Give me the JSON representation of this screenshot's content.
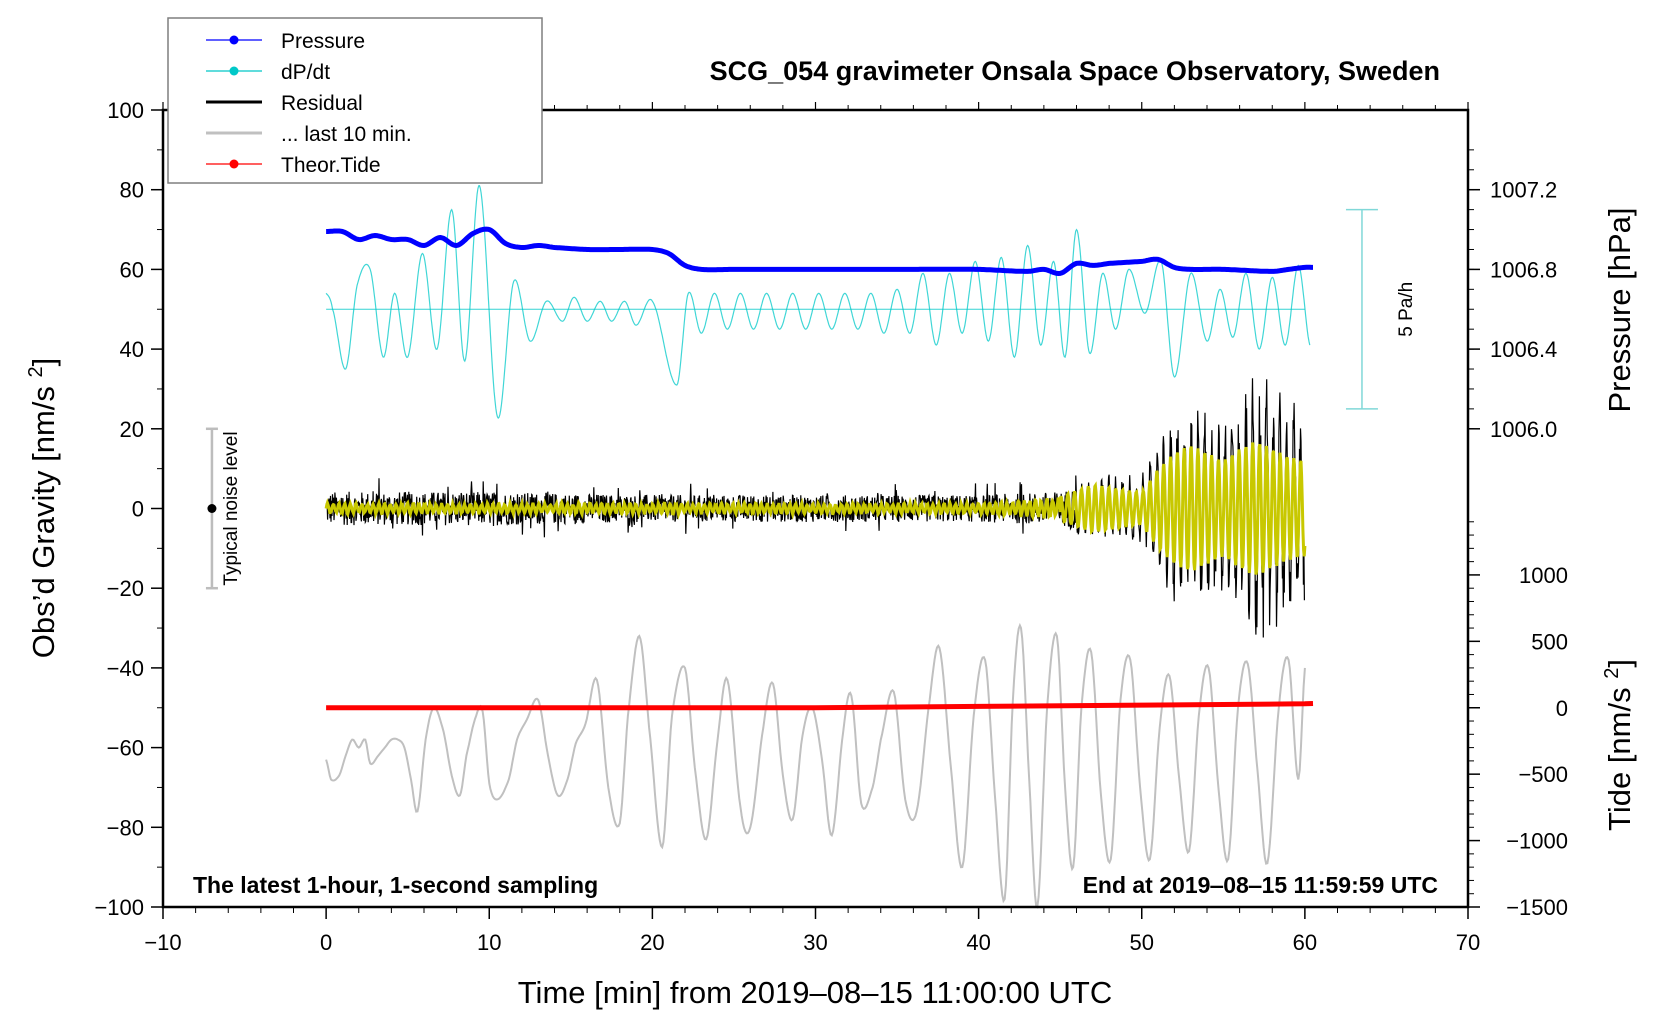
{
  "chart_data": {
    "type": "line",
    "title": "SCG_054 gravimeter Onsala Space Observatory, Sweden",
    "xlabel": "Time [min] from 2019‒08‒15 11:00:00 UTC",
    "ylabel_left": "Obs’d Gravity [nm/s²]",
    "ylabel_right_upper": "Pressure [hPa]",
    "ylabel_right_lower": "Tide [nm/s²]",
    "xlim": [
      -10,
      70
    ],
    "ylim": [
      -100,
      100
    ],
    "grid": false,
    "legend_position": "top-left",
    "x_ticks": [
      "−10",
      "0",
      "10",
      "20",
      "30",
      "40",
      "50",
      "60",
      "70"
    ],
    "x_tick_values": [
      -10,
      0,
      10,
      20,
      30,
      40,
      50,
      60,
      70
    ],
    "y_ticks": [
      "100",
      "80",
      "60",
      "40",
      "20",
      "0",
      "−20",
      "−40",
      "−60",
      "−80",
      "−100"
    ],
    "y_tick_values": [
      100,
      80,
      60,
      40,
      20,
      0,
      -20,
      -40,
      -60,
      -80,
      -100
    ],
    "pressure_axis": {
      "ticks": [
        "1007.2",
        "1006.8",
        "1006.4",
        "1006.0"
      ],
      "tick_values": [
        1007.2,
        1006.8,
        1006.4,
        1006.0
      ],
      "mapping": "gravity = 20 + (hPa - 1006.0) * 50"
    },
    "tide_axis": {
      "ticks": [
        "1000",
        "500",
        "0",
        "−500",
        "−1000",
        "−1500"
      ],
      "tick_values": [
        1000,
        500,
        0,
        -500,
        -1000,
        -1500
      ],
      "mapping": "gravity = -50 + tide / 30"
    },
    "legend": [
      {
        "label": "Pressure",
        "color": "#0000ff",
        "marker": "dot"
      },
      {
        "label": "dP/dt",
        "color": "#00c8c8",
        "marker": "dot"
      },
      {
        "label": "Residual",
        "color": "#000000",
        "marker": "line"
      },
      {
        "label": "... last 10 min.",
        "color": "#c0c0c0",
        "marker": "line"
      },
      {
        "label": "Theor.Tide",
        "color": "#ff0000",
        "marker": "dot"
      }
    ],
    "series": [
      {
        "name": "Pressure",
        "unit": "hPa",
        "color": "#0000ff",
        "x": [
          0,
          1,
          2,
          3,
          4,
          5,
          6,
          7,
          8,
          9,
          10,
          11,
          12,
          13,
          14,
          16,
          18,
          20,
          21,
          22,
          23,
          25,
          30,
          35,
          40,
          43,
          44,
          45,
          46,
          47,
          48,
          50,
          51,
          52,
          53,
          55,
          58,
          59,
          60,
          60.5
        ],
        "values": [
          1006.99,
          1006.99,
          1006.95,
          1006.97,
          1006.95,
          1006.95,
          1006.92,
          1006.96,
          1006.92,
          1006.98,
          1007.0,
          1006.93,
          1006.91,
          1006.92,
          1006.91,
          1006.9,
          1006.9,
          1006.9,
          1006.88,
          1006.82,
          1006.8,
          1006.8,
          1006.8,
          1006.8,
          1006.8,
          1006.79,
          1006.8,
          1006.78,
          1006.83,
          1006.82,
          1006.83,
          1006.84,
          1006.85,
          1006.81,
          1006.8,
          1006.8,
          1006.79,
          1006.8,
          1006.81,
          1006.81
        ]
      },
      {
        "name": "dP/dt",
        "unit": "gravity-axis units (scale bar 5 Pa/h)",
        "color": "#00c8c8",
        "baseline": 50,
        "x": [
          0,
          0.4,
          1.2,
          1.9,
          2.7,
          3.5,
          4.2,
          5.0,
          5.9,
          6.8,
          7.7,
          8.5,
          9.4,
          10.5,
          11.5,
          12.5,
          13.5,
          14.5,
          15.2,
          16.0,
          16.8,
          17.5,
          18.3,
          19.0,
          20.0,
          21.5,
          22.2,
          23.0,
          23.8,
          24.6,
          25.4,
          26.2,
          27.0,
          27.8,
          28.6,
          29.4,
          30.2,
          31.0,
          31.8,
          32.6,
          33.4,
          34.2,
          35.0,
          35.8,
          36.6,
          37.4,
          38.2,
          39.0,
          39.8,
          40.6,
          41.4,
          42.2,
          43.0,
          43.8,
          44.6,
          45.3,
          46.0,
          46.8,
          47.6,
          48.4,
          49.2,
          50.2,
          51.2,
          52.0,
          53.0,
          54.0,
          54.8,
          55.6,
          56.4,
          57.2,
          58.0,
          58.8,
          59.6,
          60.3
        ],
        "values": [
          54,
          50,
          35,
          56,
          60,
          38,
          54,
          38,
          64,
          40,
          75,
          37,
          81,
          23,
          57,
          42,
          52,
          47,
          53,
          47,
          52,
          47,
          52,
          46,
          52,
          31,
          54,
          44,
          54,
          45,
          54,
          45,
          54,
          45,
          54,
          45,
          54,
          45,
          54,
          45,
          54,
          44,
          55,
          44,
          59,
          41,
          59,
          44,
          62,
          42,
          63,
          38,
          66,
          41,
          62,
          38,
          70,
          39,
          59,
          45,
          60,
          49,
          62,
          33,
          59,
          42,
          55,
          43,
          59,
          40,
          58,
          41,
          61,
          41
        ]
      },
      {
        "name": "Residual",
        "unit": "nm/s²",
        "color": "#000000",
        "description": "broadband noise about 0, envelope ±5 for t<45, growing oscillation to about ±30 between t=51 and t=60",
        "envelope_x": [
          0,
          10,
          20,
          30,
          40,
          45,
          47,
          50,
          51,
          52,
          53,
          55,
          56,
          57,
          58,
          59,
          60
        ],
        "envelope_amplitude": [
          5,
          5,
          4,
          4,
          4,
          5,
          8,
          8,
          16,
          22,
          25,
          20,
          24,
          32,
          30,
          26,
          23
        ]
      },
      {
        "name": "Residual (smoothed)",
        "unit": "nm/s²",
        "color": "#c8c800",
        "envelope_x": [
          0,
          10,
          20,
          30,
          40,
          45,
          47,
          50,
          51,
          52,
          53,
          55,
          56,
          57,
          58,
          59,
          60
        ],
        "envelope_amplitude": [
          1.5,
          1.5,
          1.5,
          1.5,
          1.5,
          3,
          6,
          4,
          10,
          14,
          16,
          12,
          15,
          17,
          15,
          13,
          12
        ]
      },
      {
        "name": "... last 10 min.",
        "unit": "nm/s² (plotted offset, centred near −65)",
        "color": "#c0c0c0",
        "x": [
          0,
          0.3,
          0.8,
          1.2,
          1.6,
          2.0,
          2.4,
          2.7,
          3.2,
          3.6,
          4.0,
          4.4,
          4.8,
          5.2,
          5.6,
          6.1,
          6.6,
          7.2,
          7.7,
          8.2,
          8.6,
          9.2,
          9.6,
          10.0,
          10.5,
          11.2,
          11.7,
          12.3,
          13.0,
          13.6,
          14.2,
          14.8,
          15.3,
          15.9,
          16.6,
          17.3,
          18.0,
          18.5,
          19.2,
          19.8,
          20.6,
          21.2,
          22.0,
          22.6,
          23.3,
          24.0,
          24.6,
          25.4,
          26.0,
          26.8,
          27.4,
          28.0,
          28.6,
          29.2,
          29.8,
          30.4,
          31.0,
          31.7,
          32.2,
          32.8,
          33.5,
          34.0,
          34.8,
          35.5,
          36.2,
          37.0,
          37.6,
          38.3,
          39.0,
          39.7,
          40.4,
          41.0,
          41.6,
          42.1,
          42.6,
          43.1,
          43.6,
          44.2,
          44.8,
          45.3,
          45.8,
          46.3,
          46.9,
          47.5,
          48.1,
          48.7,
          49.3,
          49.9,
          50.5,
          51.1,
          51.7,
          52.3,
          52.9,
          53.5,
          54.1,
          54.7,
          55.3,
          55.9,
          56.5,
          57.1,
          57.7,
          58.4,
          59.0,
          59.6,
          60.0
        ],
        "values": [
          -63,
          -68,
          -67,
          -62,
          -58,
          -60,
          -58,
          -64,
          -62,
          -60,
          -58,
          -58,
          -60,
          -68,
          -76,
          -58,
          -50,
          -56,
          -67,
          -72,
          -62,
          -52,
          -51,
          -69,
          -73,
          -68,
          -58,
          -53,
          -48,
          -62,
          -72,
          -68,
          -59,
          -54,
          -43,
          -70,
          -79,
          -52,
          -32,
          -55,
          -85,
          -52,
          -40,
          -65,
          -83,
          -58,
          -43,
          -75,
          -80,
          -55,
          -44,
          -67,
          -78,
          -57,
          -50,
          -63,
          -82,
          -56,
          -47,
          -74,
          -70,
          -58,
          -46,
          -73,
          -76,
          -48,
          -35,
          -65,
          -90,
          -52,
          -38,
          -72,
          -98,
          -48,
          -30,
          -68,
          -100,
          -50,
          -32,
          -70,
          -90,
          -50,
          -36,
          -72,
          -88,
          -48,
          -38,
          -70,
          -88,
          -55,
          -42,
          -68,
          -86,
          -52,
          -40,
          -70,
          -88,
          -50,
          -39,
          -66,
          -89,
          -50,
          -38,
          -68,
          -40
        ]
      },
      {
        "name": "Theor.Tide",
        "unit": "nm/s²",
        "color": "#ff0000",
        "x": [
          0,
          10,
          20,
          30,
          40,
          50,
          60,
          60.5
        ],
        "values": [
          0,
          0,
          0,
          0,
          10,
          20,
          30,
          32
        ]
      }
    ],
    "annotations": {
      "noise_bar_label": "Typical noise level",
      "noise_bar_range": [
        -20,
        20
      ],
      "noise_bar_center": 0,
      "noise_bar_x": -7,
      "scale_bar_label": "5 Pa/h",
      "scale_bar_range": [
        25,
        75
      ],
      "scale_bar_x": 63.5,
      "left_note": "The latest 1‑hour, 1‑second sampling",
      "right_note": "End at 2019‒08‒15 11:59:59 UTC"
    }
  }
}
